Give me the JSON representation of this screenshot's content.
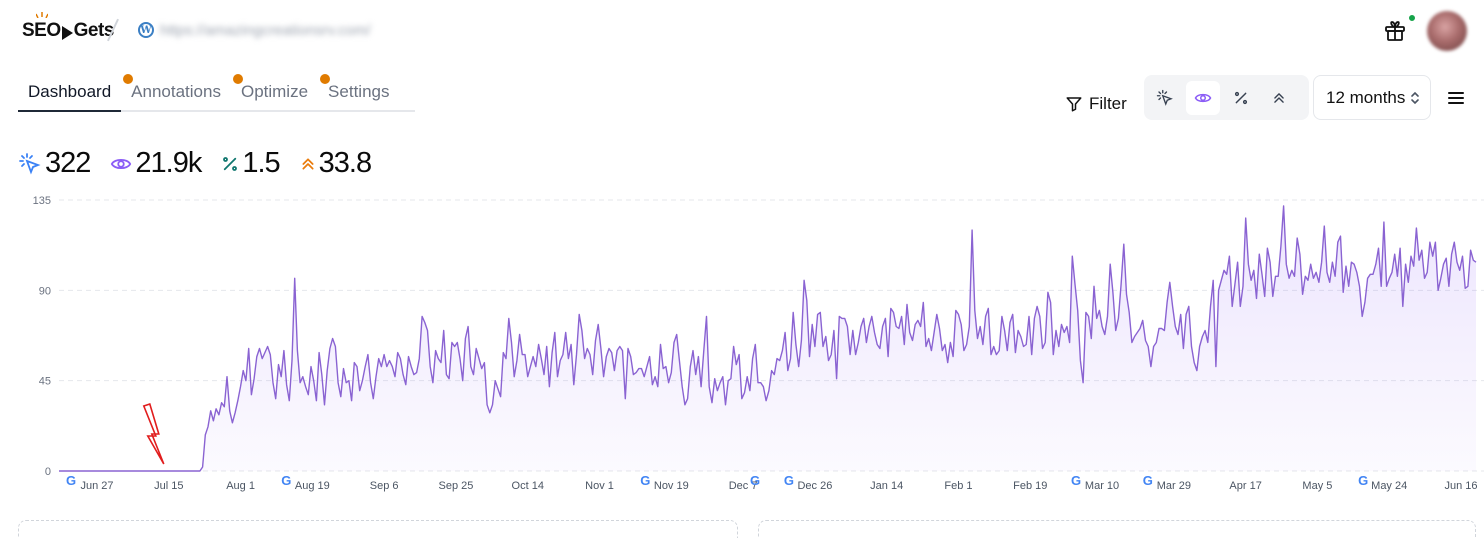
{
  "header": {
    "logo_text_left": "SEO",
    "logo_text_right": "Gets",
    "site_url": "https://amazingcreationsrv.com/"
  },
  "tabs": [
    {
      "label": "Dashboard",
      "active": true,
      "badge": false
    },
    {
      "label": "Annotations",
      "active": false,
      "badge": true
    },
    {
      "label": "Optimize",
      "active": false,
      "badge": true
    },
    {
      "label": "Settings",
      "active": false,
      "badge": true
    }
  ],
  "toolbar": {
    "filter_label": "Filter",
    "period_label": "12 months",
    "metric_buttons": [
      {
        "name": "clicks",
        "icon": "cursor-click-icon",
        "active": false
      },
      {
        "name": "impressions",
        "icon": "eye-icon",
        "active": true
      },
      {
        "name": "ctr",
        "icon": "percent-icon",
        "active": false
      },
      {
        "name": "position",
        "icon": "rank-chevron-icon",
        "active": false
      }
    ]
  },
  "stats": {
    "clicks": "322",
    "impressions": "21.9k",
    "ctr": "1.5",
    "position": "33.8"
  },
  "colors": {
    "clicks": "#3b82f6",
    "impressions": "#8b5cf6",
    "ctr": "#0f766e",
    "position": "#ea7c0c",
    "line": "#8a63d2",
    "annotation_arrow": "#e11d1d"
  },
  "chart_data": {
    "type": "area",
    "series_metric": "impressions",
    "ylim": [
      0,
      135
    ],
    "yticks": [
      0,
      45,
      90,
      135
    ],
    "grid": true,
    "x_tick_labels": [
      "Jun 27",
      "Jul 15",
      "Aug 1",
      "Aug 19",
      "Sep 6",
      "Sep 25",
      "Oct 14",
      "Nov 1",
      "Nov 19",
      "Dec 7",
      "Dec 26",
      "Jan 14",
      "Feb 1",
      "Feb 19",
      "Mar 10",
      "Mar 29",
      "Apr 17",
      "May 5",
      "May 24",
      "Jun 16"
    ],
    "google_update_markers": [
      "Jun 27",
      "Aug 19",
      "Nov 19",
      "Dec 7",
      "Dec 26",
      "Mar 10",
      "Mar 29",
      "May 24"
    ],
    "arrow_annotation_at": "Jul 15",
    "values": [
      0,
      0,
      0,
      0,
      0,
      0,
      0,
      0,
      0,
      0,
      0,
      0,
      0,
      0,
      0,
      0,
      0,
      0,
      0,
      0,
      0,
      0,
      0,
      0,
      0,
      0,
      0,
      0,
      0,
      0,
      0,
      0,
      0,
      0,
      0,
      0,
      0,
      0,
      0,
      0,
      0,
      0,
      0,
      0,
      0,
      0,
      0,
      0,
      0,
      0,
      0,
      0,
      0,
      2,
      18,
      22,
      30,
      25,
      31,
      28,
      34,
      32,
      47,
      30,
      24,
      29,
      35,
      42,
      50,
      45,
      61,
      38,
      46,
      57,
      61,
      56,
      59,
      62,
      58,
      44,
      36,
      53,
      47,
      60,
      43,
      35,
      55,
      96,
      60,
      44,
      47,
      42,
      38,
      52,
      45,
      35,
      59,
      48,
      33,
      50,
      61,
      66,
      62,
      44,
      37,
      51,
      44,
      45,
      35,
      54,
      52,
      40,
      45,
      52,
      58,
      44,
      36,
      47,
      56,
      52,
      58,
      52,
      55,
      52,
      47,
      59,
      56,
      48,
      43,
      57,
      52,
      48,
      49,
      56,
      77,
      74,
      70,
      52,
      44,
      60,
      56,
      54,
      70,
      48,
      46,
      64,
      62,
      64,
      56,
      45,
      66,
      72,
      52,
      48,
      61,
      56,
      51,
      54,
      33,
      29,
      33,
      45,
      41,
      37,
      59,
      56,
      76,
      64,
      47,
      55,
      68,
      58,
      58,
      47,
      52,
      57,
      52,
      63,
      56,
      48,
      62,
      42,
      59,
      69,
      47,
      55,
      58,
      69,
      56,
      63,
      43,
      58,
      78,
      70,
      56,
      61,
      58,
      48,
      65,
      73,
      61,
      47,
      57,
      61,
      59,
      50,
      60,
      62,
      60,
      36,
      61,
      57,
      48,
      49,
      51,
      51,
      47,
      52,
      57,
      43,
      47,
      42,
      63,
      51,
      52,
      44,
      49,
      64,
      68,
      55,
      42,
      33,
      36,
      52,
      60,
      48,
      57,
      42,
      60,
      77,
      42,
      34,
      46,
      40,
      44,
      47,
      33,
      45,
      46,
      62,
      53,
      58,
      36,
      39,
      47,
      40,
      56,
      63,
      44,
      44,
      42,
      35,
      40,
      50,
      48,
      56,
      55,
      60,
      69,
      50,
      56,
      79,
      63,
      52,
      65,
      95,
      85,
      57,
      73,
      62,
      78,
      79,
      62,
      67,
      55,
      58,
      70,
      46,
      77,
      76,
      76,
      72,
      58,
      70,
      58,
      64,
      72,
      76,
      64,
      72,
      77,
      69,
      63,
      61,
      72,
      76,
      57,
      81,
      79,
      72,
      71,
      77,
      63,
      83,
      69,
      65,
      73,
      75,
      72,
      84,
      62,
      66,
      60,
      69,
      78,
      71,
      60,
      63,
      54,
      64,
      57,
      80,
      78,
      73,
      60,
      63,
      72,
      120,
      80,
      66,
      72,
      63,
      77,
      81,
      58,
      62,
      58,
      60,
      77,
      70,
      60,
      74,
      78,
      59,
      70,
      67,
      62,
      63,
      77,
      58,
      76,
      82,
      77,
      61,
      64,
      89,
      84,
      58,
      70,
      62,
      73,
      69,
      72,
      64,
      107,
      93,
      80,
      55,
      44,
      79,
      77,
      66,
      92,
      76,
      80,
      72,
      68,
      77,
      103,
      89,
      70,
      76,
      93,
      113,
      88,
      79,
      64,
      67,
      69,
      71,
      75,
      65,
      62,
      52,
      62,
      64,
      71,
      71,
      70,
      84,
      94,
      82,
      72,
      68,
      78,
      61,
      78,
      82,
      62,
      54,
      50,
      62,
      67,
      70,
      64,
      82,
      95,
      52,
      90,
      95,
      100,
      98,
      107,
      82,
      93,
      104,
      82,
      92,
      126,
      103,
      95,
      100,
      86,
      108,
      98,
      87,
      111,
      104,
      87,
      97,
      97,
      112,
      132,
      103,
      96,
      100,
      97,
      116,
      108,
      88,
      97,
      95,
      103,
      96,
      99,
      94,
      104,
      122,
      99,
      94,
      104,
      97,
      114,
      117,
      89,
      102,
      92,
      104,
      103,
      99,
      92,
      77,
      84,
      96,
      98,
      98,
      103,
      111,
      92,
      124,
      92,
      96,
      99,
      108,
      97,
      111,
      82,
      103,
      94,
      107,
      102,
      121,
      105,
      110,
      96,
      99,
      114,
      107,
      114,
      90,
      96,
      103,
      106,
      92,
      108,
      114,
      104,
      100,
      107,
      91,
      92,
      110,
      105,
      104
    ]
  }
}
